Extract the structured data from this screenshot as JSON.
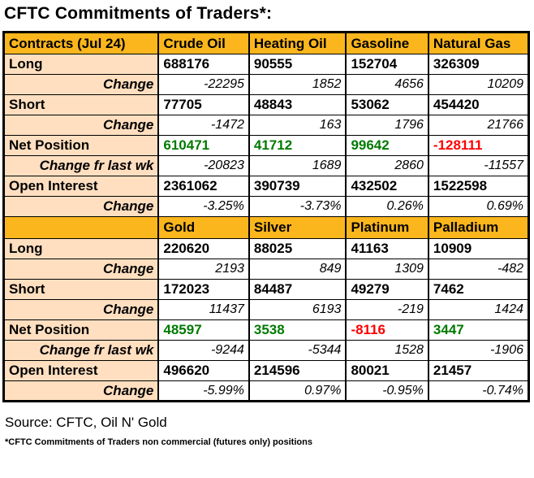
{
  "title": "CFTC Commitments of Traders*:",
  "footer": {
    "source": "Source: CFTC, Oil N' Gold",
    "footnote": "*CFTC Commitments of Traders non commercial (futures only) positions"
  },
  "colors": {
    "header_bg": "#F6A70A",
    "header_bg_alt": "#FFC52E",
    "label_bg": "#FFD5AD",
    "label_bg_alt": "#FFE9D2",
    "positive": "#007A00",
    "negative": "#FF0000",
    "border": "#000000"
  },
  "chart_data": [
    {
      "type": "table",
      "title": "CFTC Commitments of Traders*:",
      "columns": [
        "Contracts (Jul 24)",
        "Crude Oil",
        "Heating Oil",
        "Gasoline",
        "Natural Gas"
      ],
      "rows": [
        {
          "label": "Long",
          "kind": "position",
          "values": [
            "688176",
            "90555",
            "152704",
            "326309"
          ]
        },
        {
          "label": "Change",
          "kind": "change",
          "values": [
            "-22295",
            "1852",
            "4656",
            "10209"
          ]
        },
        {
          "label": "Short",
          "kind": "position",
          "values": [
            "77705",
            "48843",
            "53062",
            "454420"
          ]
        },
        {
          "label": "Change",
          "kind": "change",
          "values": [
            "-1472",
            "163",
            "1796",
            "21766"
          ]
        },
        {
          "label": "Net Position",
          "kind": "net",
          "values": [
            "610471",
            "41712",
            "99642",
            "-128111"
          ]
        },
        {
          "label": "Change fr last wk",
          "kind": "change",
          "values": [
            "-20823",
            "1689",
            "2860",
            "-11557"
          ]
        },
        {
          "label": "Open Interest",
          "kind": "position",
          "values": [
            "2361062",
            "390739",
            "432502",
            "1522598"
          ]
        },
        {
          "label": "Change",
          "kind": "change",
          "values": [
            "-3.25%",
            "-3.73%",
            "0.26%",
            "0.69%"
          ]
        }
      ]
    },
    {
      "type": "table",
      "columns": [
        "",
        "Gold",
        "Silver",
        "Platinum",
        "Palladium"
      ],
      "rows": [
        {
          "label": "Long",
          "kind": "position",
          "values": [
            "220620",
            "88025",
            "41163",
            "10909"
          ]
        },
        {
          "label": "Change",
          "kind": "change",
          "values": [
            "2193",
            "849",
            "1309",
            "-482"
          ]
        },
        {
          "label": "Short",
          "kind": "position",
          "values": [
            "172023",
            "84487",
            "49279",
            "7462"
          ]
        },
        {
          "label": "Change",
          "kind": "change",
          "values": [
            "11437",
            "6193",
            "-219",
            "1424"
          ]
        },
        {
          "label": "Net Position",
          "kind": "net",
          "values": [
            "48597",
            "3538",
            "-8116",
            "3447"
          ]
        },
        {
          "label": "Change fr last wk",
          "kind": "change",
          "values": [
            "-9244",
            "-5344",
            "1528",
            "-1906"
          ]
        },
        {
          "label": "Open Interest",
          "kind": "position",
          "values": [
            "496620",
            "214596",
            "80021",
            "21457"
          ]
        },
        {
          "label": "Change",
          "kind": "change",
          "values": [
            "-5.99%",
            "0.97%",
            "-0.95%",
            "-0.74%"
          ]
        }
      ]
    }
  ]
}
